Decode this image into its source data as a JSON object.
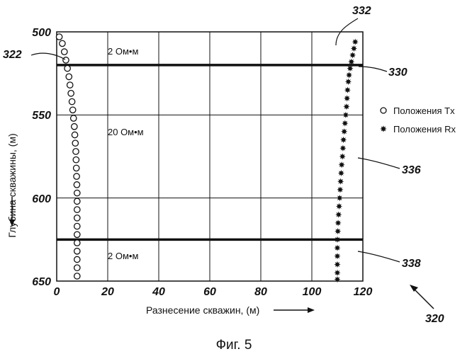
{
  "chart_data": {
    "type": "scatter",
    "xlabel": "Разнесение скважин, (м)",
    "ylabel": "Глубина скважины, (м)",
    "xlim": [
      0,
      120
    ],
    "ylim": [
      650,
      500
    ],
    "x_ticks": [
      "0",
      "20",
      "40",
      "60",
      "80",
      "100",
      "120"
    ],
    "y_ticks": [
      "500",
      "550",
      "600",
      "650"
    ],
    "grid": true,
    "legend_position": "right",
    "series": [
      {
        "name": "Положения Tx",
        "marker": "open-circle",
        "points": [
          [
            1.0,
            503
          ],
          [
            2.2,
            507
          ],
          [
            3.0,
            512
          ],
          [
            3.6,
            517
          ],
          [
            4.2,
            522
          ],
          [
            4.8,
            527
          ],
          [
            5.2,
            532
          ],
          [
            5.6,
            537
          ],
          [
            6.0,
            542
          ],
          [
            6.3,
            547
          ],
          [
            6.6,
            552
          ],
          [
            6.9,
            557
          ],
          [
            7.1,
            562
          ],
          [
            7.3,
            567
          ],
          [
            7.5,
            572
          ],
          [
            7.6,
            577
          ],
          [
            7.7,
            582
          ],
          [
            7.8,
            587
          ],
          [
            7.9,
            592
          ],
          [
            8.0,
            597
          ],
          [
            8.0,
            602
          ],
          [
            8.0,
            607
          ],
          [
            8.0,
            612
          ],
          [
            8.0,
            617
          ],
          [
            8.0,
            622
          ],
          [
            8.0,
            627
          ],
          [
            8.0,
            632
          ],
          [
            8.0,
            637
          ],
          [
            8.0,
            642
          ],
          [
            8.0,
            647
          ]
        ]
      },
      {
        "name": "Положения Rx",
        "marker": "star",
        "points": [
          [
            117.0,
            506
          ],
          [
            116.5,
            510
          ],
          [
            116.0,
            514
          ],
          [
            115.5,
            518
          ],
          [
            115.0,
            522
          ],
          [
            114.6,
            526
          ],
          [
            114.3,
            530
          ],
          [
            114.0,
            535
          ],
          [
            113.8,
            540
          ],
          [
            113.6,
            545
          ],
          [
            113.3,
            550
          ],
          [
            113.0,
            555
          ],
          [
            112.7,
            560
          ],
          [
            112.4,
            565
          ],
          [
            112.2,
            570
          ],
          [
            112.0,
            575
          ],
          [
            111.7,
            580
          ],
          [
            111.5,
            585
          ],
          [
            111.3,
            590
          ],
          [
            111.1,
            595
          ],
          [
            110.9,
            600
          ],
          [
            110.7,
            605
          ],
          [
            110.5,
            610
          ],
          [
            110.3,
            615
          ],
          [
            110.2,
            620
          ],
          [
            110.0,
            625
          ],
          [
            110.0,
            630
          ],
          [
            110.0,
            635
          ],
          [
            110.0,
            640
          ],
          [
            110.0,
            645
          ],
          [
            110.0,
            649
          ]
        ]
      }
    ],
    "boundaries": [
      {
        "depth": 520
      },
      {
        "depth": 625
      }
    ],
    "zones": [
      {
        "label": "2 Ом•м"
      },
      {
        "label": "20 Ом•м"
      },
      {
        "label": "2 Ом•м"
      }
    ],
    "references": [
      "332",
      "322",
      "330",
      "336",
      "338",
      "320"
    ],
    "caption": "Фиг. 5"
  }
}
